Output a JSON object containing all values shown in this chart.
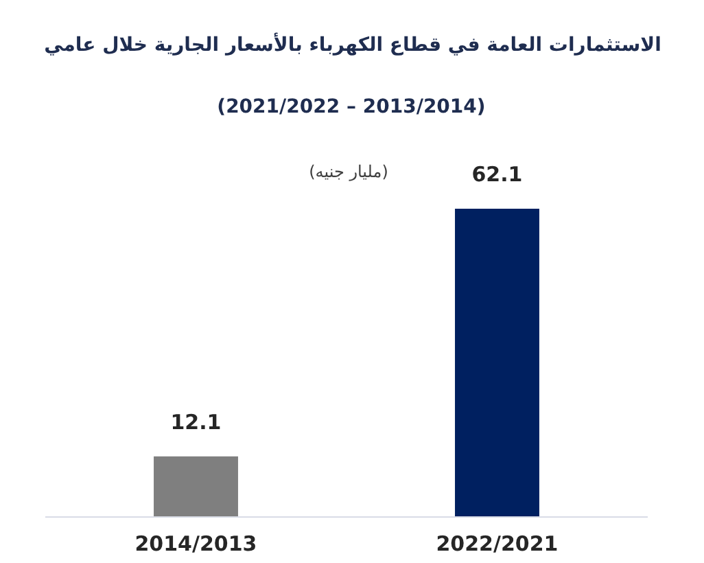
{
  "chart_data": {
    "type": "bar",
    "title": "الاستثمارات العامة في قطاع الكهرباء بالأسعار الجارية  خلال عامي",
    "subtitle": "(2021/2022 – 2013/2014)",
    "annotations": [
      "(مليار جنيه)"
    ],
    "categories": [
      "2014/2013",
      "2022/2021"
    ],
    "values": [
      12.1,
      62.1
    ],
    "colors": [
      "#7f7f7f",
      "#002060"
    ],
    "data_labels": true
  }
}
